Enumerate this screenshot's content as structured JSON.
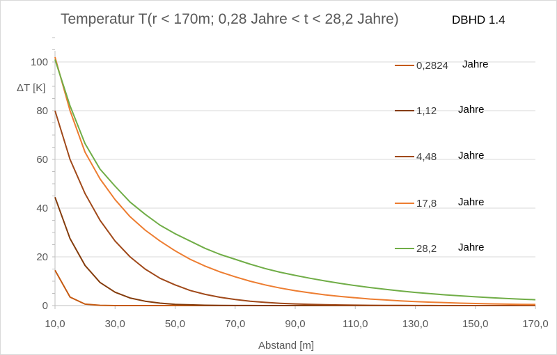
{
  "chart_data": {
    "type": "line",
    "title": "Temperatur T(r < 170m; 0,28 Jahre < t < 28,2 Jahre)",
    "subtitle": "DBHD 1.4",
    "xlabel": "Abstand [m]",
    "ylabel": "ΔT [K]",
    "xlim": [
      10,
      170
    ],
    "ylim": [
      0,
      110
    ],
    "x_ticks": [
      "10,0",
      "30,0",
      "50,0",
      "70,0",
      "90,0",
      "110,0",
      "130,0",
      "150,0",
      "170,0"
    ],
    "y_ticks": [
      "0",
      "20",
      "40",
      "60",
      "80",
      "100"
    ],
    "grid": "horizontal",
    "legend_position": "right",
    "x": [
      10,
      15,
      20,
      25,
      30,
      35,
      40,
      45,
      50,
      55,
      60,
      65,
      70,
      75,
      80,
      85,
      90,
      95,
      100,
      105,
      110,
      115,
      120,
      125,
      130,
      135,
      140,
      145,
      150,
      155,
      160,
      165,
      170
    ],
    "series": [
      {
        "name": "0,2824",
        "unit": "Jahre",
        "color": "#C55A11",
        "values": [
          14.5,
          3.5,
          0.6,
          0.1,
          0,
          0,
          0,
          0,
          0,
          0,
          0,
          0,
          0,
          0,
          0,
          0,
          0,
          0,
          0,
          0,
          0,
          0,
          0,
          0,
          0,
          0,
          0,
          0,
          0,
          0,
          0,
          0,
          0
        ]
      },
      {
        "name": "1,12",
        "unit": "Jahre",
        "color": "#843C0C",
        "values": [
          44.5,
          27.5,
          16.5,
          9.5,
          5.5,
          3.1,
          1.8,
          1.0,
          0.5,
          0.3,
          0.15,
          0.08,
          0.04,
          0.02,
          0,
          0,
          0,
          0,
          0,
          0,
          0,
          0,
          0,
          0,
          0,
          0,
          0,
          0,
          0,
          0,
          0,
          0,
          0
        ]
      },
      {
        "name": "4,48",
        "unit": "Jahre",
        "color": "#A0491A",
        "values": [
          80,
          60,
          46,
          35,
          26.5,
          20,
          15,
          11.2,
          8.5,
          6.2,
          4.6,
          3.4,
          2.5,
          1.8,
          1.3,
          0.95,
          0.7,
          0.5,
          0.35,
          0.25,
          0.18,
          0.12,
          0.08,
          0.05,
          0.03,
          0.02,
          0.01,
          0,
          0,
          0,
          0,
          0,
          0
        ]
      },
      {
        "name": "17,8",
        "unit": "Jahre",
        "color": "#ED7D31",
        "values": [
          102,
          80,
          63,
          52,
          43.5,
          36.5,
          31,
          26.5,
          22.5,
          19,
          16.2,
          13.8,
          11.8,
          10,
          8.5,
          7.2,
          6.1,
          5.2,
          4.4,
          3.75,
          3.2,
          2.7,
          2.3,
          1.95,
          1.65,
          1.4,
          1.2,
          1.0,
          0.85,
          0.72,
          0.61,
          0.52,
          0.45
        ]
      },
      {
        "name": "28,2",
        "unit": "Jahre",
        "color": "#70AD47",
        "values": [
          101,
          82,
          66.5,
          56,
          49,
          42.5,
          37.5,
          33,
          29.5,
          26.5,
          23.5,
          21,
          19,
          17,
          15.2,
          13.7,
          12.4,
          11.2,
          10.1,
          9.1,
          8.2,
          7.4,
          6.7,
          6.0,
          5.4,
          4.9,
          4.4,
          4.0,
          3.6,
          3.25,
          2.95,
          2.65,
          2.4
        ]
      }
    ]
  }
}
